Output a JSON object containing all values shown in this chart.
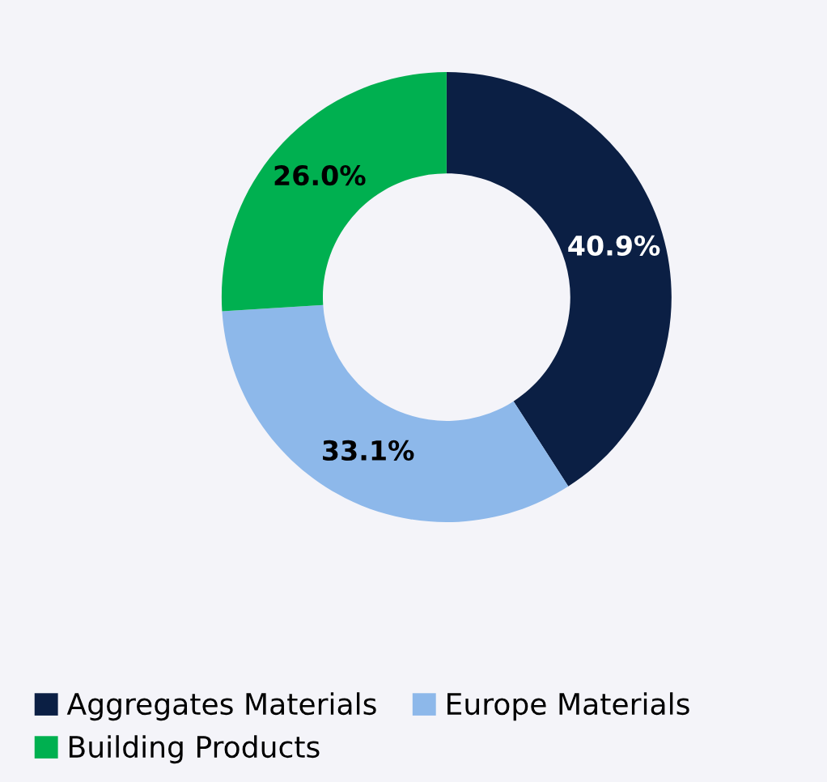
{
  "chart_data": {
    "type": "donut",
    "categories": [
      "Aggregates Materials",
      "Europe Materials",
      "Building Products"
    ],
    "values": [
      40.9,
      33.1,
      26.0
    ],
    "colors": [
      "#0b1f44",
      "#8db8ea",
      "#00b050"
    ],
    "value_labels": [
      "40.9%",
      "33.1%",
      "26.0%"
    ],
    "legend": "bottom"
  }
}
